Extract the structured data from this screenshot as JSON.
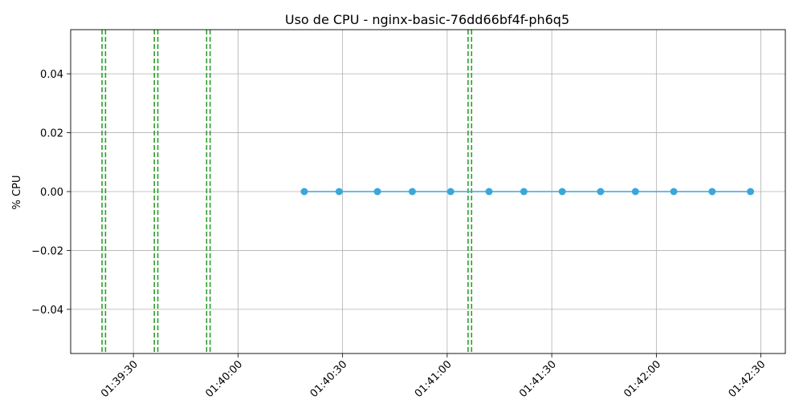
{
  "chart_data": {
    "type": "line",
    "title": "Uso de CPU - nginx-basic-76dd66bf4f-ph6q5",
    "xlabel": "",
    "ylabel": "% CPU",
    "x_tick_labels": [
      "01:39:30",
      "01:40:00",
      "01:40:30",
      "01:41:00",
      "01:41:30",
      "01:42:00",
      "01:42:30"
    ],
    "y_tick_labels": [
      "−0.04",
      "−0.02",
      "0.00",
      "0.02",
      "0.04"
    ],
    "y_ticks": [
      -0.04,
      -0.02,
      0.0,
      0.02,
      0.04
    ],
    "xlim": [
      "01:39:12",
      "01:42:37"
    ],
    "ylim": [
      -0.055,
      0.055
    ],
    "grid": true,
    "series": [
      {
        "color": "#3aa6dd",
        "marker": "circle",
        "x": [
          "01:40:19",
          "01:40:29",
          "01:40:40",
          "01:40:50",
          "01:41:01",
          "01:41:12",
          "01:41:22",
          "01:41:33",
          "01:41:44",
          "01:41:54",
          "01:42:05",
          "01:42:16",
          "01:42:27"
        ],
        "values": [
          0,
          0,
          0,
          0,
          0,
          0,
          0,
          0,
          0,
          0,
          0,
          0,
          0
        ]
      }
    ],
    "vertical_markers": {
      "color": "#2ca02c",
      "style": "dashed",
      "x": [
        "01:39:21",
        "01:39:22",
        "01:39:36",
        "01:39:37",
        "01:39:51",
        "01:39:52",
        "01:41:06",
        "01:41:07"
      ]
    }
  }
}
